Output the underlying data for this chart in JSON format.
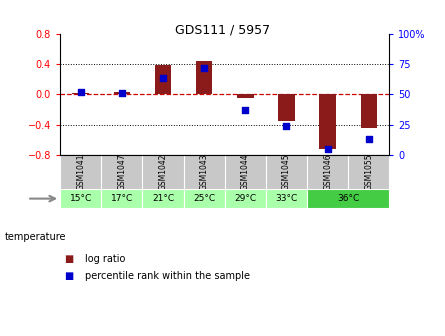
{
  "title": "GDS111 / 5957",
  "samples": [
    "GSM1041",
    "GSM1047",
    "GSM1042",
    "GSM1043",
    "GSM1044",
    "GSM1045",
    "GSM1046",
    "GSM1055"
  ],
  "log_ratio": [
    0.02,
    0.03,
    0.38,
    0.44,
    -0.05,
    -0.35,
    -0.72,
    -0.44
  ],
  "percentile_rank": [
    52,
    51,
    63,
    72,
    37,
    24,
    5,
    13
  ],
  "ylim_left": [
    -0.8,
    0.8
  ],
  "ylim_right": [
    0,
    100
  ],
  "bar_color": "#8B1A1A",
  "dot_color": "#0000CC",
  "bg_color_sample": "#c8c8c8",
  "bg_color_temp_light": "#aaffaa",
  "bg_color_temp_dark": "#44cc44",
  "zero_line_color": "#cc0000",
  "yticks_left": [
    -0.8,
    -0.4,
    0.0,
    0.4,
    0.8
  ],
  "yticks_right": [
    0,
    25,
    50,
    75,
    100
  ],
  "temp_groups": [
    {
      "start": 0,
      "end": 1,
      "label": "15°C",
      "light": true
    },
    {
      "start": 1,
      "end": 2,
      "label": "17°C",
      "light": true
    },
    {
      "start": 2,
      "end": 3,
      "label": "21°C",
      "light": true
    },
    {
      "start": 3,
      "end": 4,
      "label": "25°C",
      "light": true
    },
    {
      "start": 4,
      "end": 5,
      "label": "29°C",
      "light": true
    },
    {
      "start": 5,
      "end": 6,
      "label": "33°C",
      "light": true
    },
    {
      "start": 6,
      "end": 8,
      "label": "36°C",
      "light": false
    }
  ],
  "legend_lr": "log ratio",
  "legend_pr": "percentile rank within the sample",
  "bar_width": 0.4
}
